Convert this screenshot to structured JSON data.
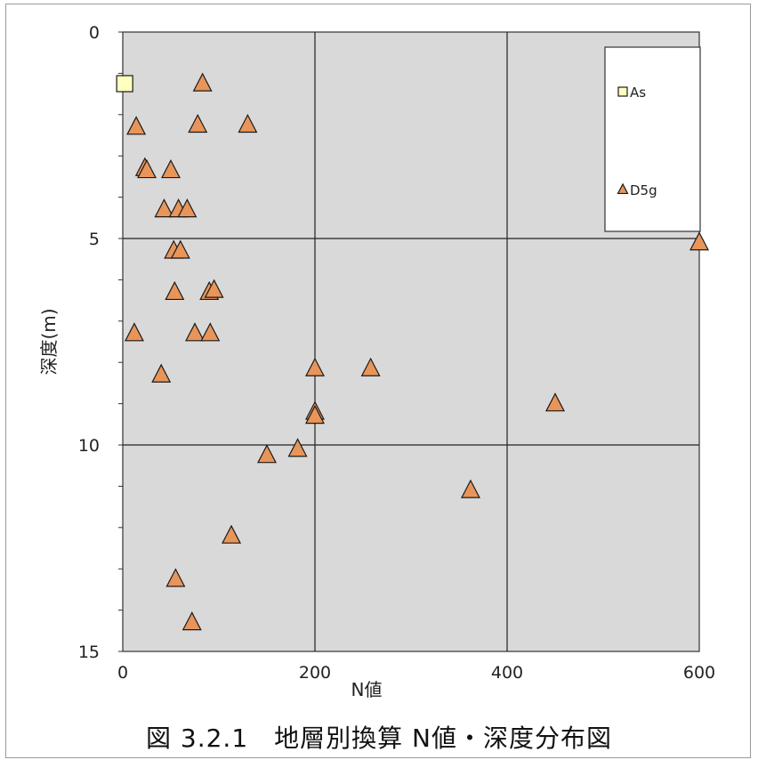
{
  "caption": "図 3.2.1　地層別換算 N値・深度分布図",
  "chart_data": {
    "type": "scatter",
    "title": "",
    "xlabel": "N値",
    "ylabel": "深度(m)",
    "xlim": [
      0,
      600
    ],
    "ylim": [
      15,
      0
    ],
    "y_inverted": true,
    "x_ticks": [
      "0",
      "200",
      "400",
      "600"
    ],
    "y_ticks": [
      "0",
      "5",
      "10",
      "15"
    ],
    "x_tick_values": [
      0,
      200,
      400,
      600
    ],
    "y_tick_values": [
      0,
      5,
      10,
      15
    ],
    "y_minor_step": 1,
    "grid": true,
    "plot_background": "#d9d9d9",
    "legend_position": "top-right",
    "series": [
      {
        "name": "As",
        "marker": "square",
        "color": "#ffffc0",
        "points": [
          [
            2,
            1.25
          ]
        ]
      },
      {
        "name": "D5g",
        "marker": "triangle",
        "color": "#e8955a",
        "points": [
          [
            83,
            1.25
          ],
          [
            14,
            2.3
          ],
          [
            78,
            2.25
          ],
          [
            130,
            2.25
          ],
          [
            23,
            3.3
          ],
          [
            25,
            3.35
          ],
          [
            50,
            3.35
          ],
          [
            43,
            4.3
          ],
          [
            58,
            4.3
          ],
          [
            67,
            4.3
          ],
          [
            53,
            5.3
          ],
          [
            60,
            5.3
          ],
          [
            54,
            6.3
          ],
          [
            90,
            6.3
          ],
          [
            95,
            6.25
          ],
          [
            12,
            7.3
          ],
          [
            75,
            7.3
          ],
          [
            91,
            7.3
          ],
          [
            40,
            8.3
          ],
          [
            200,
            8.15
          ],
          [
            258,
            8.15
          ],
          [
            200,
            9.2
          ],
          [
            200,
            9.3
          ],
          [
            450,
            9.0
          ],
          [
            150,
            10.25
          ],
          [
            182,
            10.1
          ],
          [
            362,
            11.1
          ],
          [
            113,
            12.2
          ],
          [
            55,
            13.25
          ],
          [
            72,
            14.3
          ],
          [
            600,
            5.1
          ]
        ]
      }
    ]
  }
}
